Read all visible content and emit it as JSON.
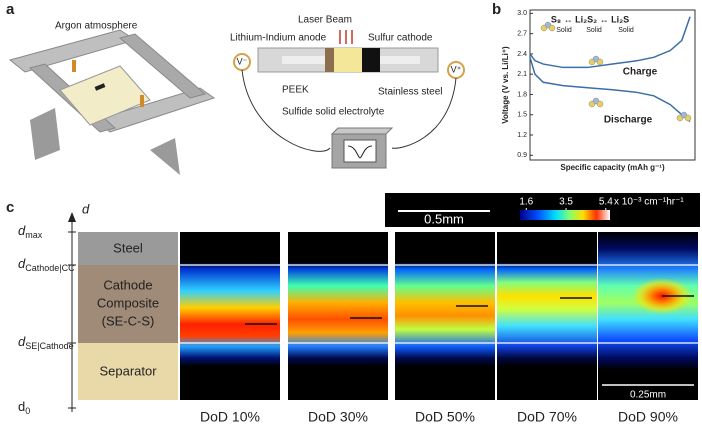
{
  "panel_labels": [
    "a",
    "b",
    "c"
  ],
  "panel_a": {
    "argon": "Argon atmosphere",
    "laser": "Laser Beam",
    "anode": "Lithium-Indium anode",
    "cathode": "Sulfur cathode",
    "peek": "PEEK",
    "steel": "Stainless steel",
    "electrolyte": "Sulfide solid electrolyte",
    "v_minus": "V⁻",
    "v_plus": "V⁺"
  },
  "chart_data": {
    "type": "line",
    "ylabel": "Voltage (V vs. Li/Li⁺)",
    "xlabel": "Specific capacity (mAh g⁻¹)",
    "reaction": "S₈ ↔ Li₂S₂ ↔ Li₂S",
    "phases": [
      "Solid",
      "Solid",
      "Solid"
    ],
    "x": [
      0,
      0.03,
      0.08,
      0.2,
      0.35,
      0.5,
      0.65,
      0.75,
      0.85,
      0.92,
      0.97
    ],
    "xlim": [
      0,
      1
    ],
    "ylim": [
      0.83,
      3.05
    ],
    "yticks": [
      0.9,
      1.2,
      1.5,
      1.8,
      2.1,
      2.4,
      2.7,
      {
        "value": 3,
        "label": "3.0"
      }
    ],
    "series": [
      {
        "name": "Charge",
        "color": "#3b6ea8",
        "values": [
          2.4,
          2.3,
          2.25,
          2.2,
          2.2,
          2.25,
          2.3,
          2.35,
          2.45,
          2.6,
          2.95
        ]
      },
      {
        "name": "Discharge",
        "color": "#3b6ea8",
        "values": [
          2.35,
          2.1,
          1.98,
          1.93,
          1.9,
          1.87,
          1.83,
          1.78,
          1.65,
          1.5,
          1.4
        ]
      }
    ]
  },
  "panel_c": {
    "axis_symbol": "d",
    "depths": [
      {
        "symbol": "d",
        "sub": "max"
      },
      {
        "symbol": "d",
        "sub": "Cathode|CC"
      },
      {
        "symbol": "d",
        "sub": "SE|Cathode"
      },
      {
        "symbol": "d",
        "sub": "0"
      }
    ],
    "layers": {
      "steel": "Steel",
      "cathode": [
        "Cathode",
        "Composite",
        "(SE-C-S)"
      ],
      "separator": "Separator"
    },
    "colorbar_ticks": [
      1.6,
      3.5,
      5.4
    ],
    "clim": [
      1.3,
      5.6
    ],
    "colorbar_unit": "x 10⁻³ cm⁻¹hr⁻¹",
    "scale_large": "0.5mm",
    "scale_small": "0.25mm",
    "dod": [
      "DoD 10%",
      "DoD 30%",
      "DoD 50%",
      "DoD 70%",
      "DoD 90%"
    ]
  }
}
